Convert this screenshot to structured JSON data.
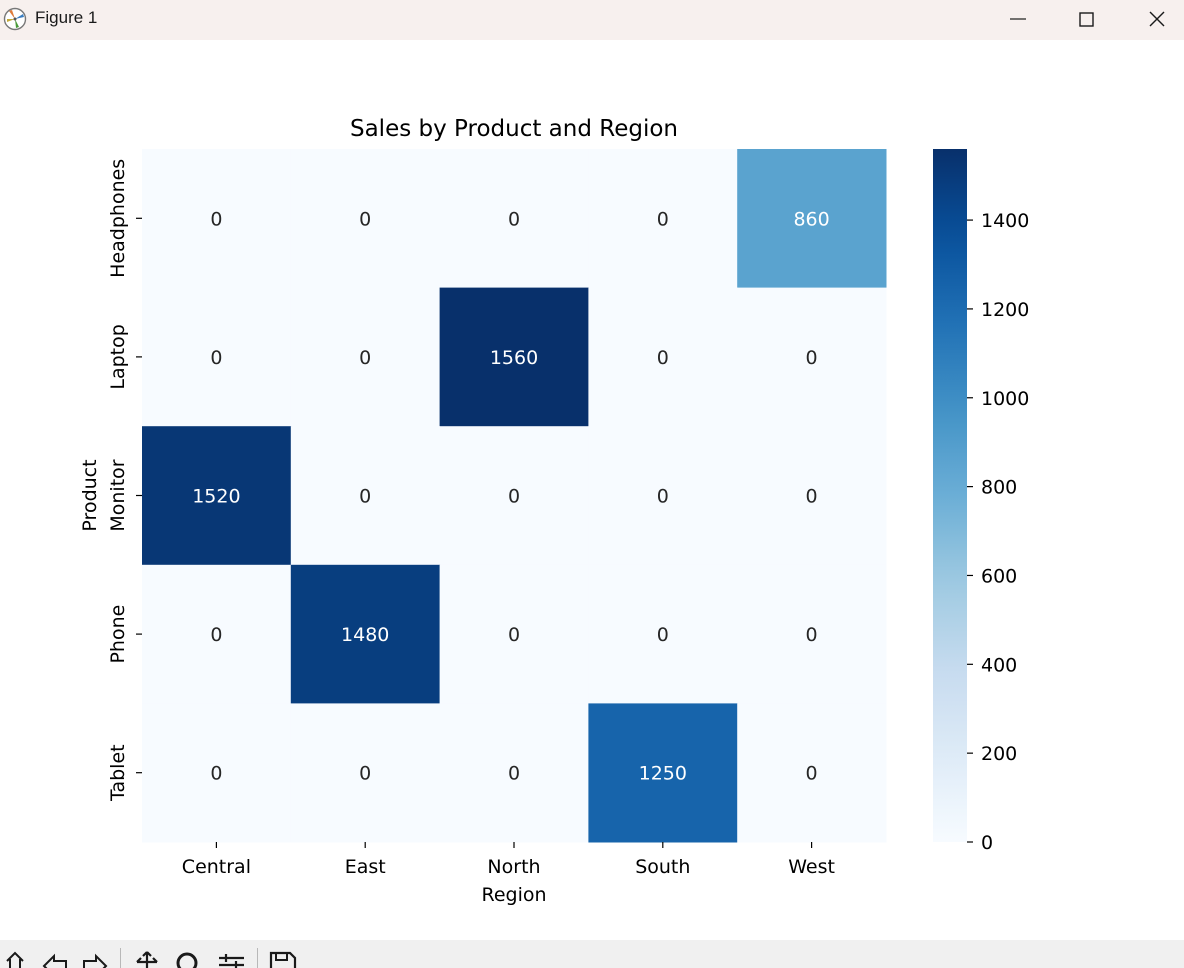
{
  "window": {
    "title": "Figure 1"
  },
  "toolbar": {
    "tools": [
      "home-icon",
      "back-icon",
      "forward-icon",
      "pan-icon",
      "zoom-icon",
      "subplots-icon",
      "save-icon"
    ]
  },
  "chart_data": {
    "type": "heatmap",
    "title": "Sales by Product and Region",
    "xlabel": "Region",
    "ylabel": "Product",
    "x_categories": [
      "Central",
      "East",
      "North",
      "South",
      "West"
    ],
    "y_categories": [
      "Headphones",
      "Laptop",
      "Monitor",
      "Phone",
      "Tablet"
    ],
    "values": [
      [
        0,
        0,
        0,
        0,
        860
      ],
      [
        0,
        0,
        1560,
        0,
        0
      ],
      [
        1520,
        0,
        0,
        0,
        0
      ],
      [
        0,
        1480,
        0,
        0,
        0
      ],
      [
        0,
        0,
        0,
        1250,
        0
      ]
    ],
    "colormap": "Blues",
    "vmin": 0,
    "vmax": 1560,
    "colorbar_ticks": [
      0,
      200,
      400,
      600,
      800,
      1000,
      1200,
      1400
    ],
    "annotation_colors": {
      "dark_cells": "#ffffff",
      "light_cells": "#262626"
    }
  }
}
